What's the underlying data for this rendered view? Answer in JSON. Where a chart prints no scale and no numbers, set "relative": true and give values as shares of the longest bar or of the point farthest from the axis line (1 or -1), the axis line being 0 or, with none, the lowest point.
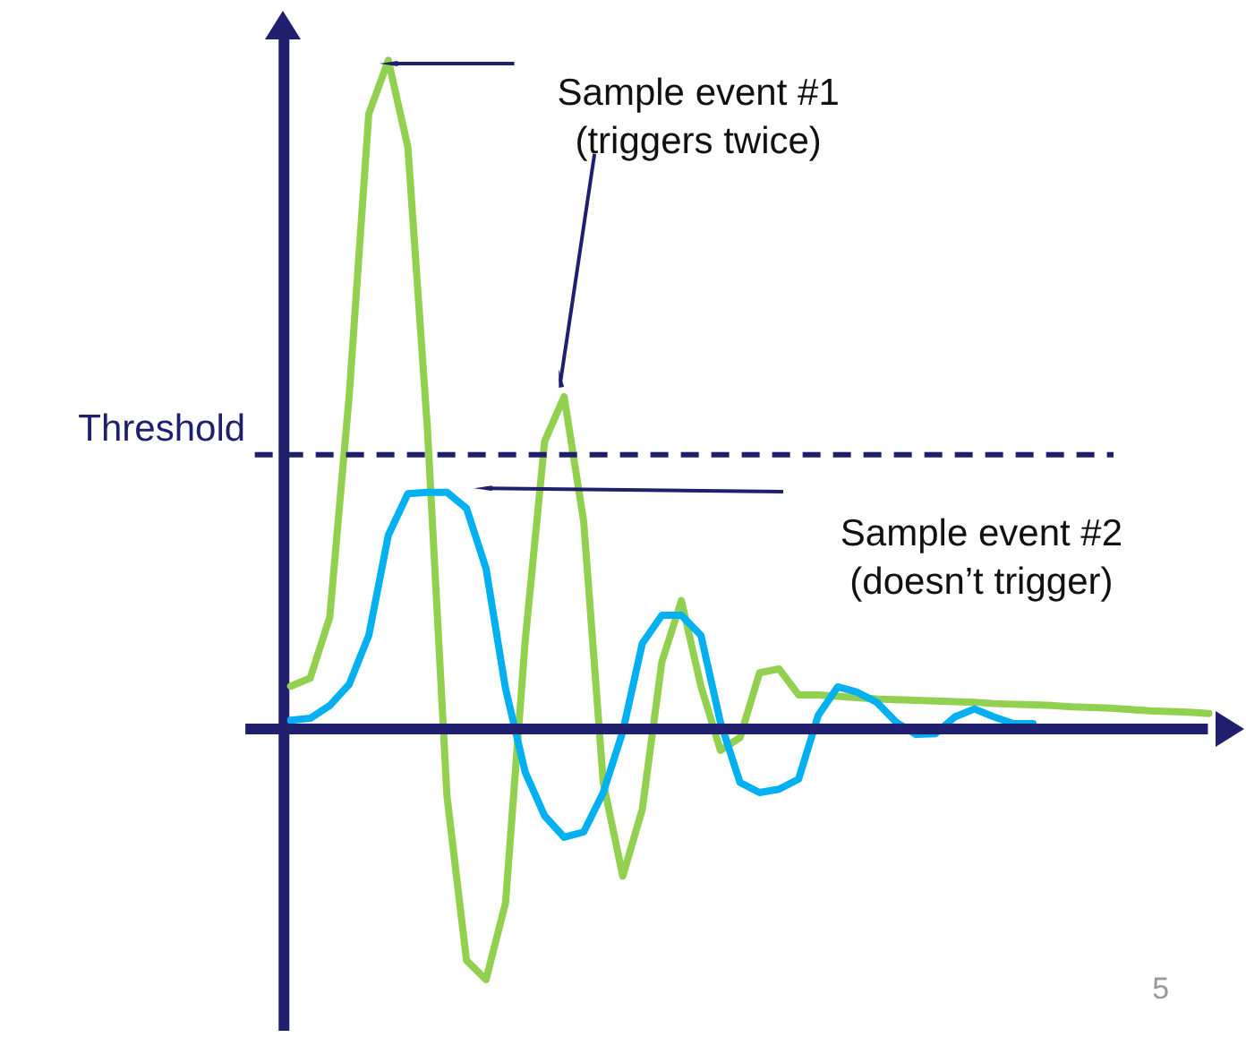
{
  "chart_data": {
    "type": "line",
    "relative": true,
    "categories": [
      null,
      null,
      null,
      null,
      null,
      null,
      null,
      null,
      null,
      null,
      null,
      null,
      null,
      null,
      null,
      null,
      null,
      null,
      null,
      null,
      null,
      null,
      null,
      null,
      null,
      null,
      null,
      null,
      null,
      null,
      null,
      null,
      null,
      null,
      null,
      null,
      null,
      null,
      null,
      null,
      null,
      null,
      null,
      null,
      null,
      null,
      null,
      null
    ],
    "series": [
      {
        "color": "#92d050",
        "values": [
          0.064,
          0.076,
          0.167,
          0.5,
          0.92,
          1,
          0.87,
          0.449,
          -0.1,
          -0.346,
          -0.375,
          -0.26,
          0.13,
          0.43,
          0.497,
          0.31,
          -0.08,
          -0.22,
          -0.12,
          0.1,
          0.192,
          0.064,
          -0.032,
          -0.013,
          0.084,
          0.09,
          0.051,
          0.051,
          0.049,
          0.047,
          0.045,
          0.044,
          0.043,
          0.042,
          0.041,
          0.04,
          0.038,
          0.037,
          0.036,
          0.035,
          0.033,
          0.032,
          0.031,
          0.029,
          0.027,
          0.026,
          0.025,
          0.023
        ]
      },
      {
        "color": "#00b0f0",
        "values": [
          0.013,
          0.016,
          0.035,
          0.067,
          0.14,
          0.29,
          0.352,
          0.354,
          0.354,
          0.33,
          0.24,
          0.06,
          -0.064,
          -0.13,
          -0.162,
          -0.154,
          -0.095,
          -0.004,
          0.128,
          0.17,
          0.17,
          0.14,
          0.01,
          -0.08,
          -0.095,
          -0.09,
          -0.075,
          0.02,
          0.063,
          0.055,
          0.04,
          0.01,
          -0.008,
          -0.007,
          0.018,
          0.03,
          0.018,
          0.008,
          0.008,
          null,
          null,
          null,
          null,
          null,
          null,
          null,
          null,
          null
        ]
      }
    ],
    "ref_lines": [
      {
        "axis": "y",
        "value": 0.41,
        "label": "Threshold",
        "line_style": "dashed",
        "color": "#1f1f6e"
      },
      {
        "axis": "y",
        "value": 0,
        "line_style": "solid",
        "color": "#1f1f6e"
      }
    ],
    "annotations": [
      "Sample event #1\n(triggers twice)",
      "Sample event #2\n(doesn’t trigger)",
      "5"
    ]
  }
}
